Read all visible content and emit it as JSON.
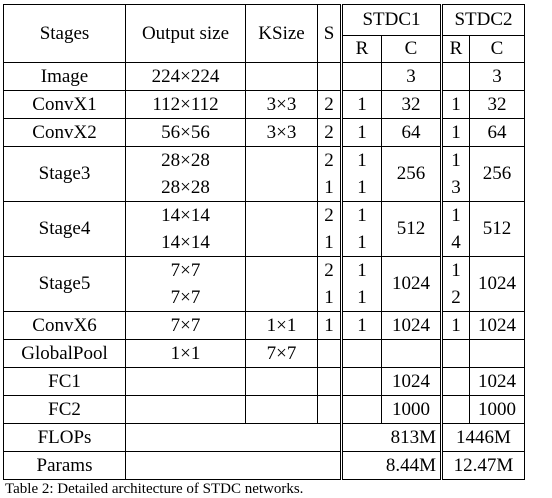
{
  "headers": {
    "stages": "Stages",
    "output_size": "Output size",
    "ksize": "KSize",
    "s": "S",
    "stdc1": "STDC1",
    "stdc2": "STDC2",
    "r": "R",
    "c": "C"
  },
  "rows": {
    "image": {
      "stage": "Image",
      "out": "224×224",
      "k": "",
      "s": "",
      "r1": "",
      "c1": "3",
      "r2": "",
      "c2": "3"
    },
    "convx1": {
      "stage": "ConvX1",
      "out": "112×112",
      "k": "3×3",
      "s": "2",
      "r1": "1",
      "c1": "32",
      "r2": "1",
      "c2": "32"
    },
    "convx2": {
      "stage": "ConvX2",
      "out": "56×56",
      "k": "3×3",
      "s": "2",
      "r1": "1",
      "c1": "64",
      "r2": "1",
      "c2": "64"
    },
    "stage3": {
      "stage": "Stage3",
      "out_a": "28×28",
      "out_b": "28×28",
      "s_a": "2",
      "s_b": "1",
      "r1_a": "1",
      "r1_b": "1",
      "c1": "256",
      "r2_a": "1",
      "r2_b": "3",
      "c2": "256"
    },
    "stage4": {
      "stage": "Stage4",
      "out_a": "14×14",
      "out_b": "14×14",
      "s_a": "2",
      "s_b": "1",
      "r1_a": "1",
      "r1_b": "1",
      "c1": "512",
      "r2_a": "1",
      "r2_b": "4",
      "c2": "512"
    },
    "stage5": {
      "stage": "Stage5",
      "out_a": "7×7",
      "out_b": "7×7",
      "s_a": "2",
      "s_b": "1",
      "r1_a": "1",
      "r1_b": "1",
      "c1": "1024",
      "r2_a": "1",
      "r2_b": "2",
      "c2": "1024"
    },
    "convx6": {
      "stage": "ConvX6",
      "out": "7×7",
      "k": "1×1",
      "s": "1",
      "r1": "1",
      "c1": "1024",
      "r2": "1",
      "c2": "1024"
    },
    "globalpool": {
      "stage": "GlobalPool",
      "out": "1×1",
      "k": "7×7"
    },
    "fc1": {
      "stage": "FC1",
      "c1": "1024",
      "c2": "1024"
    },
    "fc2": {
      "stage": "FC2",
      "c1": "1000",
      "c2": "1000"
    },
    "flops": {
      "stage": "FLOPs",
      "v1": "813M",
      "v2": "1446M"
    },
    "params": {
      "stage": "Params",
      "v1": "8.44M",
      "v2": "12.47M"
    }
  },
  "caption": "Table 2: Detailed architecture of STDC networks."
}
